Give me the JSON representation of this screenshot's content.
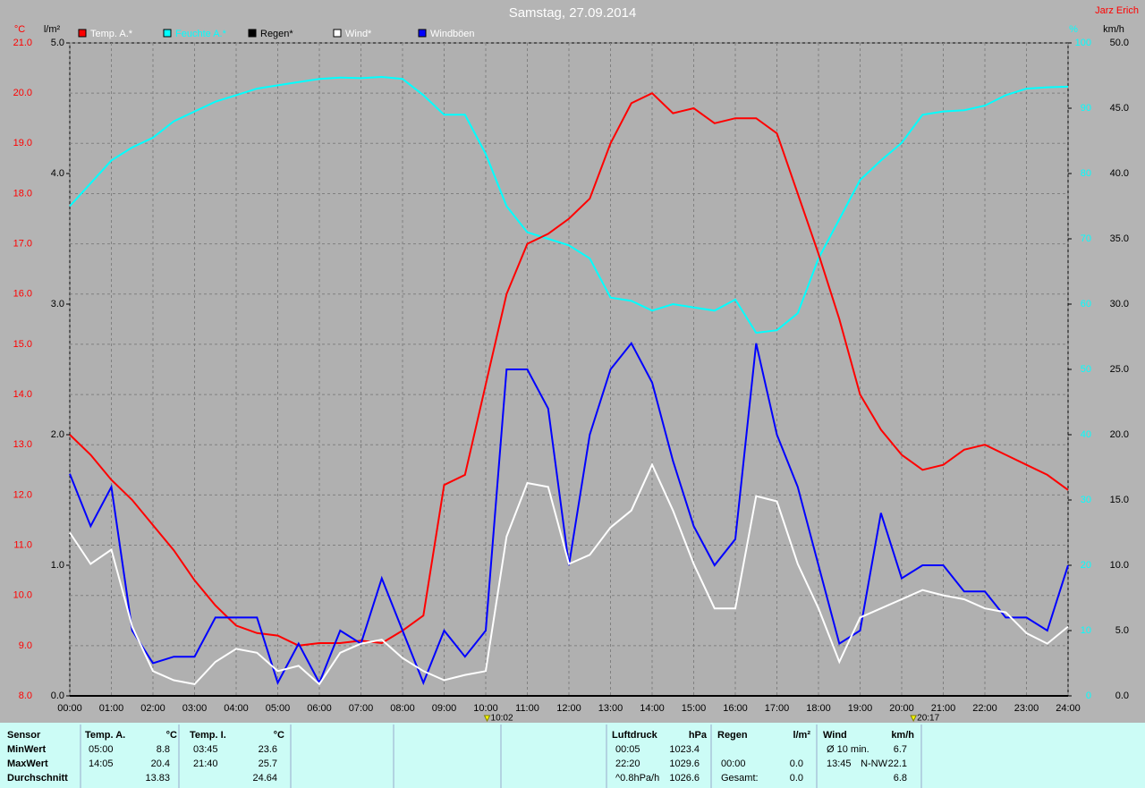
{
  "chart_data": {
    "type": "line",
    "title": "Samstag, 27.09.2014",
    "author": "Jarz Erich",
    "ylabel": "°C",
    "rainlabel": "l/m²",
    "y2label": "%",
    "y3label": "km/h",
    "x": [
      0,
      0.5,
      1,
      1.5,
      2,
      2.5,
      3,
      3.5,
      4,
      4.5,
      5,
      5.5,
      6,
      6.5,
      7,
      7.5,
      8,
      8.5,
      9,
      9.5,
      10,
      10.5,
      11,
      11.5,
      12,
      12.5,
      13,
      13.5,
      14,
      14.5,
      15,
      15.5,
      16,
      16.5,
      17,
      17.5,
      18,
      18.5,
      19,
      19.5,
      20,
      20.5,
      21,
      21.5,
      22,
      22.5,
      23,
      23.5,
      24
    ],
    "xlim": [
      0,
      24
    ],
    "xticks": [
      {
        "value": 0,
        "label": "00:00"
      },
      {
        "value": 1,
        "label": "01:00"
      },
      {
        "value": 2,
        "label": "02:00"
      },
      {
        "value": 3,
        "label": "03:00"
      },
      {
        "value": 4,
        "label": "04:00"
      },
      {
        "value": 5,
        "label": "05:00"
      },
      {
        "value": 6,
        "label": "06:00"
      },
      {
        "value": 7,
        "label": "07:00"
      },
      {
        "value": 8,
        "label": "08:00"
      },
      {
        "value": 9,
        "label": "09:00"
      },
      {
        "value": 10,
        "label": "10:00"
      },
      {
        "value": 11,
        "label": "11:00"
      },
      {
        "value": 12,
        "label": "12:00"
      },
      {
        "value": 13,
        "label": "13:00"
      },
      {
        "value": 14,
        "label": "14:00"
      },
      {
        "value": 15,
        "label": "15:00"
      },
      {
        "value": 16,
        "label": "16:00"
      },
      {
        "value": 17,
        "label": "17:00"
      },
      {
        "value": 18,
        "label": "18:00"
      },
      {
        "value": 19,
        "label": "19:00"
      },
      {
        "value": 20,
        "label": "20:00"
      },
      {
        "value": 21,
        "label": "21:00"
      },
      {
        "value": 22,
        "label": "22:00"
      },
      {
        "value": 23,
        "label": "23:00"
      },
      {
        "value": 24,
        "label": "24:00"
      }
    ],
    "ylim": [
      8,
      21
    ],
    "yticks": [
      {
        "value": 8,
        "label": "8.0"
      },
      {
        "value": 9,
        "label": "9.0"
      },
      {
        "value": 10,
        "label": "10.0"
      },
      {
        "value": 11,
        "label": "11.0"
      },
      {
        "value": 12,
        "label": "12.0"
      },
      {
        "value": 13,
        "label": "13.0"
      },
      {
        "value": 14,
        "label": "14.0"
      },
      {
        "value": 15,
        "label": "15.0"
      },
      {
        "value": 16,
        "label": "16.0"
      },
      {
        "value": 17,
        "label": "17.0"
      },
      {
        "value": 18,
        "label": "18.0"
      },
      {
        "value": 19,
        "label": "19.0"
      },
      {
        "value": 20,
        "label": "20.0"
      },
      {
        "value": 21,
        "label": "21.0"
      }
    ],
    "rainlim": [
      0,
      5
    ],
    "rainticks": [
      {
        "value": 0,
        "label": "0.0"
      },
      {
        "value": 1,
        "label": "1.0"
      },
      {
        "value": 2,
        "label": "2.0"
      },
      {
        "value": 3,
        "label": "3.0"
      },
      {
        "value": 4,
        "label": "4.0"
      },
      {
        "value": 5,
        "label": "5.0"
      }
    ],
    "y2lim": [
      0,
      100
    ],
    "y2ticks": [
      0,
      10,
      20,
      30,
      40,
      50,
      60,
      70,
      80,
      90,
      100
    ],
    "y3lim": [
      0,
      50
    ],
    "y3ticks": [
      {
        "value": 0,
        "label": "0.0"
      },
      {
        "value": 5,
        "label": "5.0"
      },
      {
        "value": 10,
        "label": "10.0"
      },
      {
        "value": 15,
        "label": "15.0"
      },
      {
        "value": 20,
        "label": "20.0"
      },
      {
        "value": 25,
        "label": "25.0"
      },
      {
        "value": 30,
        "label": "30.0"
      },
      {
        "value": 35,
        "label": "35.0"
      },
      {
        "value": 40,
        "label": "40.0"
      },
      {
        "value": 45,
        "label": "45.0"
      },
      {
        "value": 50,
        "label": "50.0"
      }
    ],
    "grid": true,
    "series": [
      {
        "name": "Temp. A.*",
        "color": "#ff0000",
        "axis": "y",
        "values": [
          13.2,
          12.8,
          12.3,
          11.9,
          11.4,
          10.9,
          10.3,
          9.8,
          9.4,
          9.25,
          9.2,
          9.0,
          9.05,
          9.05,
          9.1,
          9.05,
          9.3,
          9.6,
          12.2,
          12.4,
          14.2,
          16.0,
          17.0,
          17.2,
          17.5,
          17.9,
          19.0,
          19.8,
          20.0,
          19.6,
          19.7,
          19.4,
          19.5,
          19.5,
          19.2,
          18.0,
          16.8,
          15.5,
          14.0,
          13.3,
          12.8,
          12.5,
          12.6,
          12.9,
          13.0,
          12.8,
          12.6,
          12.4,
          12.1
        ]
      },
      {
        "name": "Feuchte A.*",
        "color": "#00ffff",
        "axis": "y2",
        "values": [
          75,
          78.5,
          82,
          84,
          85.5,
          88,
          89.5,
          91,
          92,
          93,
          93.5,
          94,
          94.5,
          94.7,
          94.6,
          94.8,
          94.5,
          92,
          89,
          89,
          83,
          75,
          71,
          70,
          69,
          67,
          61,
          60.5,
          59,
          60,
          59.5,
          59,
          60.7,
          55.6,
          56,
          58.6,
          67,
          73,
          79,
          82,
          84.7,
          89,
          89.5,
          89.7,
          90.4,
          92,
          93,
          93.2,
          93.3
        ]
      },
      {
        "name": "Regen*",
        "color": "#000000",
        "axis": "rain",
        "values": [
          0,
          0,
          0,
          0,
          0,
          0,
          0,
          0,
          0,
          0,
          0,
          0,
          0,
          0,
          0,
          0,
          0,
          0,
          0,
          0,
          0,
          0,
          0,
          0,
          0,
          0,
          0,
          0,
          0,
          0,
          0,
          0,
          0,
          0,
          0,
          0,
          0,
          0,
          0,
          0,
          0,
          0,
          0,
          0,
          0,
          0,
          0,
          0,
          0
        ]
      },
      {
        "name": "Wind*",
        "color": "#ffffff",
        "axis": "y3",
        "values": [
          12.5,
          10.1,
          11.2,
          5.3,
          1.9,
          1.2,
          0.9,
          2.6,
          3.6,
          3.3,
          1.9,
          2.3,
          0.9,
          3.3,
          4.0,
          4.3,
          2.9,
          1.9,
          1.2,
          1.6,
          1.9,
          12.2,
          16.3,
          16.0,
          10.1,
          10.8,
          12.9,
          14.2,
          17.7,
          14.2,
          10.1,
          6.7,
          6.7,
          15.3,
          14.9,
          10.1,
          6.7,
          2.6,
          6.0,
          6.7,
          7.4,
          8.1,
          7.7,
          7.4,
          6.7,
          6.4,
          4.8,
          4.0,
          5.3
        ]
      },
      {
        "name": "Windböen",
        "color": "#0000ff",
        "axis": "y3",
        "values": [
          17,
          13,
          16,
          5,
          2.5,
          3,
          3,
          6,
          6,
          6,
          1,
          4,
          1,
          5,
          4,
          9,
          5,
          1,
          5,
          3,
          5,
          25,
          25,
          22,
          10,
          20,
          25,
          27,
          24,
          18,
          13,
          10,
          12,
          27,
          20,
          16,
          10,
          4,
          5,
          14,
          9,
          10,
          10,
          8,
          8,
          6,
          6,
          5,
          10
        ]
      }
    ],
    "annotations": [
      {
        "x": 10.033,
        "label": "10:02"
      },
      {
        "x": 20.283,
        "label": "20:17"
      }
    ]
  },
  "table": {
    "row_labels": [
      "Sensor",
      "MinWert",
      "MaxWert",
      "Durchschnitt"
    ],
    "panels": [
      {
        "title": "Temp. A.",
        "unit": "°C",
        "min": {
          "t": "05:00",
          "v": "8.8"
        },
        "max": {
          "t": "14:05",
          "v": "20.4"
        },
        "avg": {
          "v": "13.83"
        }
      },
      {
        "title": "Temp. I.",
        "unit": "°C",
        "min": {
          "t": "03:45",
          "v": "23.6"
        },
        "max": {
          "t": "21:40",
          "v": "25.7"
        },
        "avg": {
          "v": "24.64"
        }
      },
      {
        "title": "Luftdruck",
        "unit": "hPa",
        "min": {
          "t": "00:05",
          "v": "1023.4"
        },
        "max": {
          "t": "22:20",
          "v": "1029.6"
        },
        "avg": {
          "t": "^0.8hPa/h",
          "v": "1026.6"
        }
      },
      {
        "title": "Regen",
        "unit": "l/m²",
        "max": {
          "t": "00:00",
          "v": "0.0"
        },
        "avg": {
          "t": "Gesamt:",
          "v": "0.0"
        }
      },
      {
        "title": "Wind",
        "unit": "km/h",
        "min": {
          "t": "Ø 10 min.",
          "v": "6.7"
        },
        "max": {
          "t": "13:45",
          "d": "N-NW",
          "v": "22.1"
        },
        "avg": {
          "v": "6.8"
        }
      }
    ]
  }
}
